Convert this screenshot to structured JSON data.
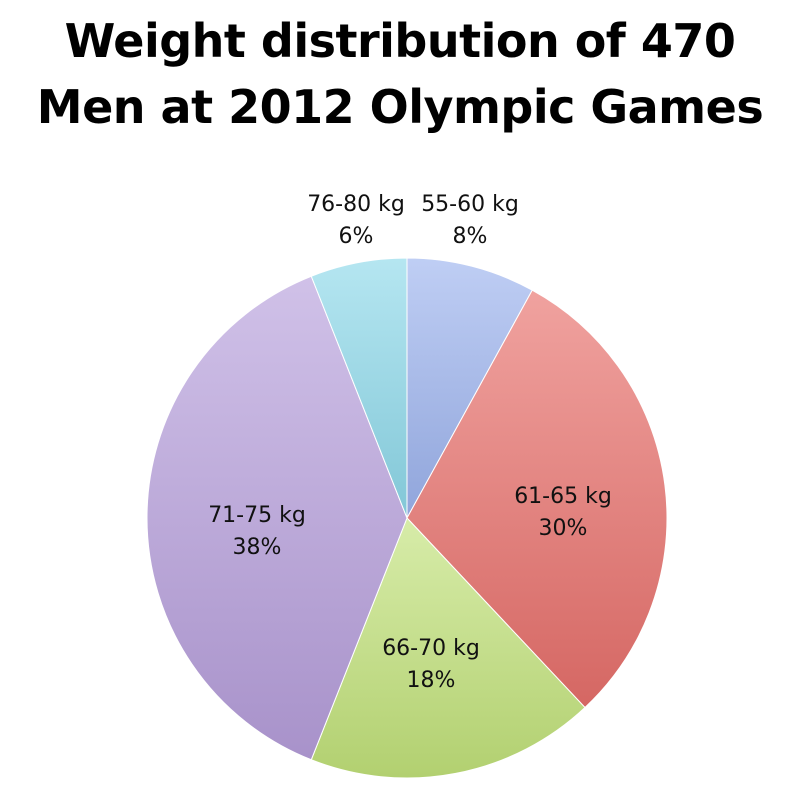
{
  "chart_data": {
    "type": "pie",
    "title_lines": [
      "Weight distribution of 470",
      "Men at 2012 Olympic Games"
    ],
    "slices": [
      {
        "label": "55-60 kg",
        "value": 8,
        "pct_text": "8%",
        "color": "#9db3ee"
      },
      {
        "label": "61-65 kg",
        "value": 30,
        "pct_text": "30%",
        "color": "#e8706c"
      },
      {
        "label": "66-70 kg",
        "value": 18,
        "pct_text": "18%",
        "color": "#c2e27a"
      },
      {
        "label": "71-75 kg",
        "value": 38,
        "pct_text": "38%",
        "color": "#b79fdc"
      },
      {
        "label": "76-80 kg",
        "value": 6,
        "pct_text": "6%",
        "color": "#8dd8ea"
      }
    ],
    "start": "12 o'clock",
    "direction": "clockwise"
  }
}
